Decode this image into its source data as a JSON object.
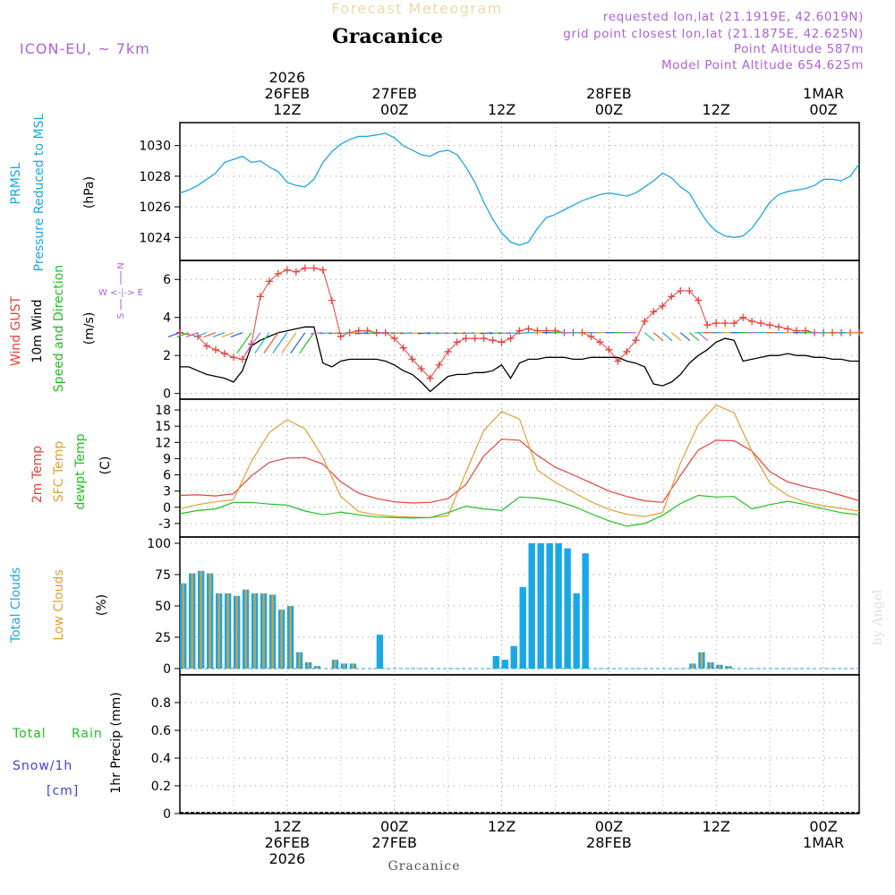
{
  "header": {
    "title": "Forecast Meteogram",
    "location": "Gracanice",
    "model": "ICON-EU, ~ 7km",
    "requested": "requested lon,lat (21.1919E, 42.6019N)",
    "grid_point": "grid point closest lon,lat (21.1875E, 42.625N)",
    "point_altitude": "Point Altitude 587m",
    "model_altitude": "Model Point Altitude 654.625m",
    "watermark": "by Angel",
    "footer_location": "Gracanice"
  },
  "time_axis": {
    "top": [
      {
        "t": 12,
        "lines": [
          "2026",
          "26FEB",
          "12Z"
        ]
      },
      {
        "t": 24,
        "lines": [
          "27FEB",
          "00Z"
        ]
      },
      {
        "t": 36,
        "lines": [
          "12Z"
        ]
      },
      {
        "t": 48,
        "lines": [
          "28FEB",
          "00Z"
        ]
      },
      {
        "t": 60,
        "lines": [
          "12Z"
        ]
      },
      {
        "t": 72,
        "lines": [
          "1MAR",
          "00Z"
        ]
      }
    ],
    "bottom": [
      {
        "t": 12,
        "lines": [
          "12Z",
          "26FEB",
          "2026"
        ]
      },
      {
        "t": 24,
        "lines": [
          "00Z",
          "27FEB"
        ]
      },
      {
        "t": 36,
        "lines": [
          "12Z"
        ]
      },
      {
        "t": 48,
        "lines": [
          "00Z",
          "28FEB"
        ]
      },
      {
        "t": 60,
        "lines": [
          "12Z"
        ]
      },
      {
        "t": 72,
        "lines": [
          "00Z",
          "1MAR"
        ]
      }
    ]
  },
  "labels": {
    "prmsl": [
      "PRMSL",
      "Pressure Reduced to MSL",
      "(hPa)"
    ],
    "wind": [
      "Wind GUST",
      "10m Wind",
      "Speed and Direction",
      "(m/s)"
    ],
    "compass": [
      "N",
      "W <-|-> E",
      "S"
    ],
    "temp": [
      "2m Temp",
      "SFC Temp",
      "dewpt Temp",
      "(C)"
    ],
    "cloud": [
      "Total Clouds",
      "Low Clouds",
      "(%)"
    ],
    "precip": [
      "Total",
      "Rain",
      "Snow/1h",
      "[cm]",
      "1hr Precip (mm)"
    ]
  },
  "colors": {
    "pressure": "#1aa7e8",
    "gust": "#e8403a",
    "wind": "#000000",
    "temp2m": "#e8403a",
    "sfc": "#e0a030",
    "dew": "#20c020",
    "cloud_total": "#1aa7e8",
    "cloud_low": "#e0a030",
    "purple": "#b060e0"
  },
  "chart_data": [
    {
      "type": "line",
      "name": "pressure",
      "title": "PRMSL",
      "ylabel": "(hPa)",
      "ylim": [
        1022.5,
        1031.5
      ],
      "yticks": [
        1024,
        1026,
        1028,
        1030
      ],
      "x": [
        0,
        1,
        2,
        3,
        4,
        5,
        6,
        7,
        8,
        9,
        10,
        11,
        12,
        13,
        14,
        15,
        16,
        17,
        18,
        19,
        20,
        21,
        22,
        23,
        24,
        25,
        26,
        27,
        28,
        29,
        30,
        31,
        32,
        33,
        34,
        35,
        36,
        37,
        38,
        39,
        40,
        41,
        42,
        43,
        44,
        45,
        46,
        47,
        48,
        49,
        50,
        51,
        52,
        53,
        54,
        55,
        56,
        57,
        58,
        59,
        60,
        61,
        62,
        63,
        64,
        65,
        66,
        67,
        68,
        69,
        70,
        71,
        72,
        73,
        74,
        75,
        76
      ],
      "values": [
        1026.9,
        1027.1,
        1027.4,
        1027.8,
        1028.2,
        1028.9,
        1029.1,
        1029.3,
        1028.9,
        1029.0,
        1028.6,
        1028.3,
        1027.6,
        1027.4,
        1027.3,
        1027.8,
        1028.9,
        1029.6,
        1030.1,
        1030.4,
        1030.6,
        1030.6,
        1030.7,
        1030.8,
        1030.5,
        1030.0,
        1029.7,
        1029.4,
        1029.3,
        1029.6,
        1029.7,
        1029.4,
        1028.6,
        1027.6,
        1026.3,
        1025.2,
        1024.3,
        1023.7,
        1023.5,
        1023.7,
        1024.6,
        1025.3,
        1025.5,
        1025.8,
        1026.1,
        1026.4,
        1026.6,
        1026.8,
        1026.9,
        1026.8,
        1026.7,
        1026.9,
        1027.3,
        1027.7,
        1028.2,
        1027.9,
        1027.3,
        1026.9,
        1025.9,
        1025.0,
        1024.4,
        1024.1,
        1024.0,
        1024.1,
        1024.6,
        1025.4,
        1026.3,
        1026.8,
        1027.0,
        1027.1,
        1027.2,
        1027.4,
        1027.8,
        1027.8,
        1027.7,
        1028.0,
        1028.8
      ]
    },
    {
      "type": "line",
      "name": "wind",
      "title": "Wind GUST / 10m Wind",
      "ylabel": "(m/s)",
      "ylim": [
        -0.3,
        7.0
      ],
      "yticks": [
        0,
        2,
        4,
        6
      ],
      "series": [
        {
          "name": "Wind GUST",
          "x": [
            0,
            2,
            3,
            4,
            5,
            6,
            7,
            8,
            9,
            10,
            11,
            12,
            13,
            14,
            15,
            16,
            17,
            18,
            19,
            20,
            21,
            22,
            23,
            24,
            25,
            26,
            27,
            28,
            29,
            30,
            31,
            32,
            33,
            34,
            35,
            36,
            37,
            38,
            39,
            40,
            41,
            42,
            43,
            44,
            45,
            46,
            47,
            48,
            49,
            50,
            51,
            52,
            53,
            54,
            55,
            56,
            57,
            58,
            59,
            60,
            61,
            62,
            63,
            64,
            65,
            66,
            67,
            68,
            69,
            70,
            71,
            72,
            73,
            74,
            75,
            76
          ],
          "values": [
            3.2,
            3.0,
            2.5,
            2.3,
            2.1,
            1.9,
            1.8,
            2.6,
            5.1,
            5.9,
            6.3,
            6.5,
            6.4,
            6.6,
            6.6,
            6.5,
            4.9,
            3.0,
            3.2,
            3.3,
            3.3,
            3.2,
            3.2,
            2.9,
            2.4,
            1.8,
            1.3,
            0.8,
            1.5,
            2.2,
            2.7,
            2.9,
            2.9,
            2.9,
            2.8,
            2.7,
            2.9,
            3.3,
            3.4,
            3.3,
            3.3,
            3.3,
            3.2,
            3.2,
            3.2,
            3.0,
            2.7,
            2.3,
            1.7,
            2.2,
            2.8,
            3.8,
            4.3,
            4.6,
            5.1,
            5.4,
            5.4,
            4.9,
            3.6,
            3.7,
            3.7,
            3.7,
            4.0,
            3.8,
            3.7,
            3.6,
            3.5,
            3.4,
            3.3,
            3.3,
            3.2,
            3.2,
            3.2,
            3.2,
            3.2,
            3.2
          ]
        },
        {
          "name": "10m Wind",
          "x": [
            0,
            1,
            2,
            3,
            4,
            5,
            6,
            7,
            8,
            9,
            10,
            11,
            12,
            13,
            14,
            15,
            16,
            17,
            18,
            19,
            20,
            21,
            22,
            23,
            24,
            25,
            26,
            27,
            28,
            29,
            30,
            31,
            32,
            33,
            34,
            35,
            36,
            37,
            38,
            39,
            40,
            41,
            42,
            43,
            44,
            45,
            46,
            47,
            48,
            49,
            50,
            51,
            52,
            53,
            54,
            55,
            56,
            57,
            58,
            59,
            60,
            61,
            62,
            63,
            64,
            65,
            66,
            67,
            68,
            69,
            70,
            71,
            72,
            73,
            74,
            75,
            76
          ],
          "values": [
            1.4,
            1.4,
            1.2,
            1.0,
            0.9,
            0.8,
            0.6,
            1.2,
            2.5,
            2.8,
            3.0,
            3.2,
            3.3,
            3.4,
            3.5,
            3.5,
            1.6,
            1.4,
            1.7,
            1.8,
            1.8,
            1.8,
            1.8,
            1.7,
            1.5,
            1.2,
            1.0,
            0.6,
            0.1,
            0.5,
            0.9,
            1.0,
            1.0,
            1.1,
            1.1,
            1.2,
            1.5,
            0.8,
            1.6,
            1.8,
            1.8,
            1.9,
            1.9,
            1.9,
            1.8,
            1.8,
            1.9,
            1.9,
            1.9,
            1.9,
            1.7,
            1.6,
            1.4,
            0.5,
            0.4,
            0.6,
            1.0,
            1.6,
            2.0,
            2.3,
            2.7,
            2.9,
            2.8,
            1.7,
            1.8,
            1.9,
            2.0,
            2.0,
            2.1,
            2.0,
            2.0,
            1.9,
            1.9,
            1.8,
            1.8,
            1.7,
            1.7
          ]
        }
      ]
    },
    {
      "type": "line",
      "name": "temperature",
      "title": "2m Temp / SFC Temp / dewpt Temp",
      "ylabel": "(C)",
      "ylim": [
        -5.5,
        20
      ],
      "yticks": [
        -3,
        0,
        3,
        6,
        9,
        12,
        15,
        18
      ],
      "series": [
        {
          "name": "2m Temp",
          "x": [
            0,
            2,
            4,
            6,
            8,
            10,
            12,
            14,
            16,
            18,
            20,
            22,
            24,
            26,
            28,
            30,
            32,
            34,
            36,
            38,
            40,
            42,
            44,
            46,
            48,
            50,
            52,
            54,
            56,
            58,
            60,
            62,
            64,
            66,
            68,
            70,
            72,
            74,
            76
          ],
          "values": [
            2.2,
            2.3,
            2.1,
            2.5,
            5.8,
            8.3,
            9.1,
            9.2,
            8.0,
            4.7,
            2.6,
            1.6,
            1.0,
            0.8,
            0.9,
            1.6,
            4.2,
            9.5,
            12.6,
            12.4,
            9.6,
            7.4,
            6.0,
            4.5,
            3.0,
            2.0,
            1.2,
            0.9,
            5.9,
            10.6,
            12.4,
            12.3,
            10.4,
            6.6,
            4.7,
            3.8,
            3.1,
            2.2,
            1.2
          ]
        },
        {
          "name": "SFC Temp",
          "x": [
            0,
            2,
            4,
            6,
            8,
            10,
            12,
            14,
            16,
            18,
            20,
            22,
            24,
            26,
            28,
            30,
            32,
            34,
            36,
            38,
            40,
            42,
            44,
            46,
            48,
            50,
            52,
            54,
            56,
            58,
            60,
            62,
            64,
            66,
            68,
            70,
            72,
            74,
            76
          ],
          "values": [
            -0.3,
            0.5,
            1.0,
            1.4,
            8.5,
            13.8,
            16.2,
            14.5,
            9.2,
            2.0,
            -0.8,
            -1.4,
            -1.7,
            -1.8,
            -1.9,
            -1.6,
            6.5,
            14.2,
            17.7,
            16.3,
            6.9,
            4.6,
            2.8,
            1.0,
            -0.4,
            -1.3,
            -1.7,
            -1.0,
            8.2,
            15.3,
            18.9,
            17.5,
            10.3,
            4.5,
            2.2,
            0.9,
            0.3,
            -0.2,
            -0.7
          ]
        },
        {
          "name": "dewpt Temp",
          "x": [
            0,
            2,
            4,
            6,
            8,
            10,
            12,
            14,
            16,
            18,
            20,
            22,
            24,
            26,
            28,
            30,
            32,
            34,
            36,
            38,
            40,
            42,
            44,
            46,
            48,
            50,
            52,
            54,
            56,
            58,
            60,
            62,
            64,
            66,
            68,
            70,
            72,
            74,
            76
          ],
          "values": [
            -1.2,
            -0.6,
            -0.3,
            0.9,
            0.9,
            0.6,
            0.4,
            -0.7,
            -1.4,
            -0.9,
            -1.4,
            -1.8,
            -1.9,
            -2.0,
            -1.9,
            -1.0,
            0.2,
            -0.3,
            -0.6,
            1.9,
            1.7,
            1.2,
            0.2,
            -1.2,
            -2.5,
            -3.5,
            -3.0,
            -1.5,
            0.7,
            2.2,
            1.9,
            2.0,
            -0.3,
            0.5,
            1.1,
            0.5,
            -0.3,
            -1.0,
            -1.4
          ]
        }
      ]
    },
    {
      "type": "bar",
      "name": "clouds",
      "title": "Total Clouds / Low Clouds",
      "ylabel": "(%)",
      "ylim": [
        -5,
        105
      ],
      "yticks": [
        0,
        25,
        50,
        75,
        100
      ],
      "x": [
        0,
        1,
        2,
        3,
        4,
        5,
        6,
        7,
        8,
        9,
        10,
        11,
        12,
        13,
        14,
        15,
        16,
        17,
        18,
        19,
        20,
        21,
        22,
        23,
        24,
        25,
        26,
        27,
        28,
        29,
        30,
        31,
        32,
        33,
        34,
        35,
        36,
        37,
        38,
        39,
        40,
        41,
        42,
        43,
        44,
        45,
        46,
        47,
        48,
        49,
        50,
        51,
        52,
        53,
        54,
        55,
        56,
        57,
        58,
        59,
        60,
        61,
        62,
        63,
        64,
        65,
        66,
        67,
        68,
        69,
        70,
        71,
        72,
        73,
        74,
        75,
        76
      ],
      "series": [
        {
          "name": "Total Clouds",
          "values": [
            68,
            76,
            78,
            76,
            60,
            60,
            58,
            63,
            60,
            60,
            59,
            47,
            50,
            13,
            5,
            2,
            0,
            7,
            4,
            4,
            0,
            0,
            27,
            0,
            0,
            0,
            0,
            0,
            0,
            0,
            0,
            0,
            0,
            0,
            0,
            10,
            7,
            18,
            65,
            100,
            100,
            100,
            100,
            96,
            60,
            92,
            0,
            0,
            0,
            0,
            0,
            0,
            0,
            0,
            0,
            0,
            0,
            4,
            13,
            5,
            3,
            2,
            0,
            0,
            0,
            0,
            0,
            0,
            0,
            0,
            0,
            0,
            0,
            0,
            0,
            0,
            0
          ]
        },
        {
          "name": "Low Clouds",
          "values": [
            68,
            76,
            78,
            76,
            60,
            60,
            58,
            63,
            60,
            60,
            59,
            47,
            50,
            13,
            5,
            2,
            0,
            7,
            4,
            4,
            0,
            0,
            0,
            0,
            0,
            0,
            0,
            0,
            0,
            0,
            0,
            0,
            0,
            0,
            0,
            0,
            0,
            0,
            0,
            0,
            0,
            0,
            0,
            0,
            0,
            0,
            0,
            0,
            0,
            0,
            0,
            0,
            0,
            0,
            0,
            0,
            0,
            4,
            13,
            5,
            3,
            2,
            0,
            0,
            0,
            0,
            0,
            0,
            0,
            0,
            0,
            0,
            0,
            0,
            0,
            0,
            0
          ]
        }
      ]
    },
    {
      "type": "bar",
      "name": "precip",
      "title": "1hr Precip",
      "ylabel": "1hr Precip (mm)",
      "ylim": [
        0,
        1.0
      ],
      "yticks": [
        0,
        0.2,
        0.4,
        0.6,
        0.8
      ],
      "values": []
    }
  ]
}
